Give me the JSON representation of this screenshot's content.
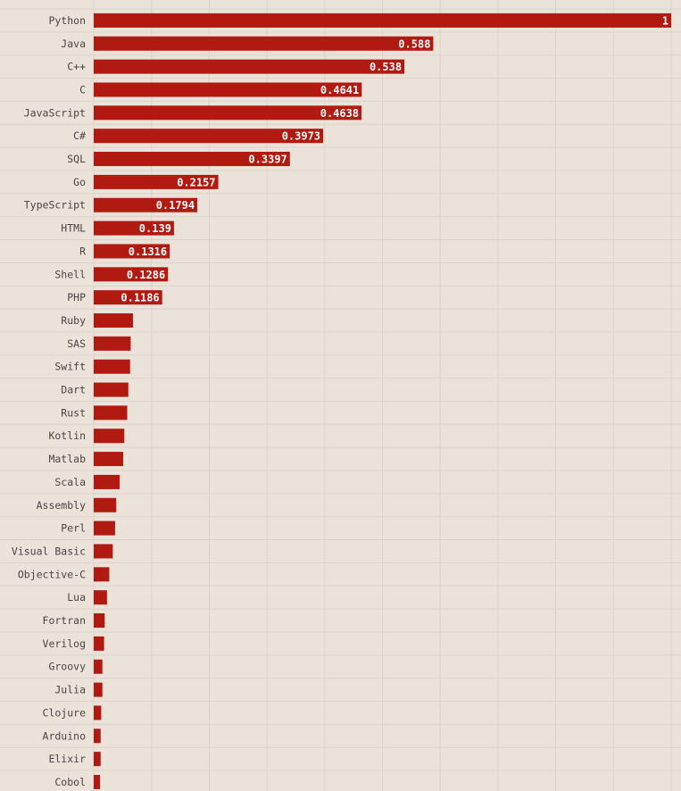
{
  "chart_data": {
    "type": "bar",
    "orientation": "horizontal",
    "title": "",
    "xlabel": "",
    "ylabel": "",
    "xlim": [
      0,
      1
    ],
    "grid": true,
    "categories": [
      "Python",
      "Java",
      "C++",
      "C",
      "JavaScript",
      "C#",
      "SQL",
      "Go",
      "TypeScript",
      "HTML",
      "R",
      "Shell",
      "PHP",
      "Ruby",
      "SAS",
      "Swift",
      "Dart",
      "Rust",
      "Kotlin",
      "Matlab",
      "Scala",
      "Assembly",
      "Perl",
      "Visual Basic",
      "Objective-C",
      "Lua",
      "Fortran",
      "Verilog",
      "Groovy",
      "Julia",
      "Clojure",
      "Arduino",
      "Elixir",
      "Cobol"
    ],
    "values": [
      1,
      0.588,
      0.538,
      0.4641,
      0.4638,
      0.3973,
      0.3397,
      0.2157,
      0.1794,
      0.139,
      0.1316,
      0.1286,
      0.1186,
      0.068,
      0.064,
      0.063,
      0.06,
      0.058,
      0.053,
      0.051,
      0.045,
      0.039,
      0.037,
      0.033,
      0.027,
      0.023,
      0.019,
      0.018,
      0.015,
      0.015,
      0.013,
      0.012,
      0.012,
      0.011
    ],
    "data_labels": [
      "1",
      "0.588",
      "0.538",
      "0.4641",
      "0.4638",
      "0.3973",
      "0.3397",
      "0.2157",
      "0.1794",
      "0.139",
      "0.1316",
      "0.1286",
      "0.1186",
      "",
      "",
      "",
      "",
      "",
      "",
      "",
      "",
      "",
      "",
      "",
      "",
      "",
      "",
      "",
      "",
      "",
      "",
      "",
      "",
      ""
    ],
    "colors": {
      "bar": "#b11a10",
      "background": "#ebe2d9",
      "grid": "#ddd3c9",
      "label": "#4a4540",
      "value_text": "#ffffff"
    }
  }
}
